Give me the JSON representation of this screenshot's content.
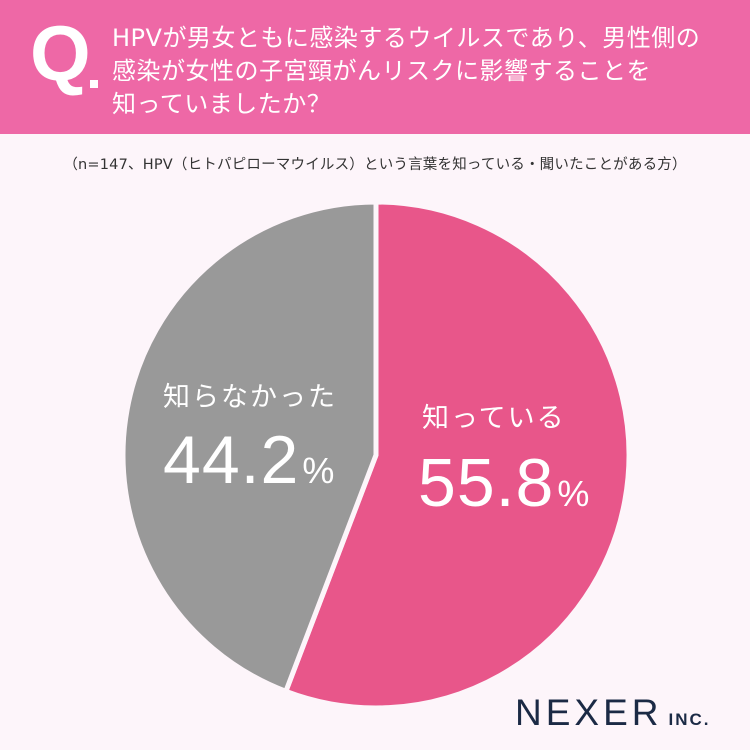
{
  "header": {
    "q_mark": "Q",
    "question_lines": [
      "HPVが男女ともに感染するウイルスであり、男性側の",
      "感染が女性の子宮頸がんリスクに影響することを",
      "知っていましたか？"
    ],
    "background_color": "#ee68a6"
  },
  "note": "（n=147、HPV（ヒトパピローマウイルス）という言葉を知っている・聞いたことがある方）",
  "chart_data": {
    "type": "pie",
    "title": "HPVが男女ともに感染するウイルスであり、男性側の感染が女性の子宮頸がんリスクに影響することを知っていましたか？",
    "subtitle": "（n=147、HPV（ヒトパピローマウイルス）という言葉を知っている・聞いたことがある方）",
    "categories": [
      "知っている",
      "知らなかった"
    ],
    "values": [
      55.8,
      44.2
    ],
    "unit": "%",
    "colors": [
      "#e8568a",
      "#999999"
    ],
    "start_angle_deg": 0,
    "direction": "clockwise",
    "legend": "none (labels inside slices)"
  },
  "labels": {
    "yes": {
      "name": "知っている",
      "value": "55.8",
      "pct": "%"
    },
    "no": {
      "name": "知らなかった",
      "value": "44.2",
      "pct": "%"
    }
  },
  "logo": {
    "main": "NEXER",
    "suffix": "INC."
  }
}
